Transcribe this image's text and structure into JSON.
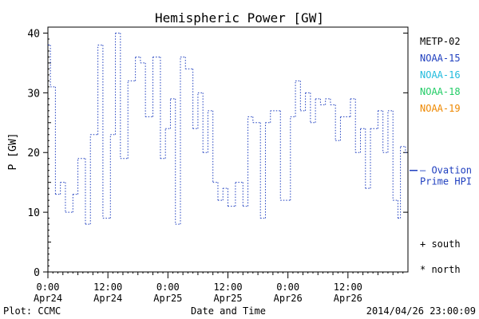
{
  "chart_data": {
    "type": "line",
    "title": "Hemispheric Power [GW]",
    "ylabel": "P [GW]",
    "xlabel": "Date and Time",
    "ylim": [
      0,
      41
    ],
    "xlim": [
      "2014-04-24 00:00",
      "2014-04-27 00:00"
    ],
    "yticks": [
      "0",
      "10",
      "20",
      "30",
      "40"
    ],
    "yticks_values": [
      0,
      10,
      20,
      30,
      40
    ],
    "xticks": [
      {
        "time": "0:00",
        "date": "Apr24"
      },
      {
        "time": "12:00",
        "date": "Apr24"
      },
      {
        "time": "0:00",
        "date": "Apr25"
      },
      {
        "time": "12:00",
        "date": "Apr25"
      },
      {
        "time": "0:00",
        "date": "Apr26"
      },
      {
        "time": "12:00",
        "date": "Apr26"
      }
    ],
    "grid": false,
    "legend": [
      {
        "name": "METP-02",
        "color": "#000000"
      },
      {
        "name": "NOAA-15",
        "color": "#1f3fbf"
      },
      {
        "name": "NOAA-16",
        "color": "#22bbdd"
      },
      {
        "name": "NOAA-18",
        "color": "#22cc66"
      },
      {
        "name": "NOAA-19",
        "color": "#ee8800"
      }
    ],
    "legend_position": "right",
    "ovation_label_line1": "— Ovation",
    "ovation_label_line2": "Prime HPI",
    "ovation_value": 17,
    "series": [
      {
        "name": "NOAA-15",
        "color": "#1f3fbf",
        "line_style": "dotted-step",
        "x": [
          "2014-04-24 00:00",
          "2014-04-24 00:30",
          "2014-04-24 01:30",
          "2014-04-24 02:30",
          "2014-04-24 03:30",
          "2014-04-24 05:00",
          "2014-04-24 06:00",
          "2014-04-24 07:30",
          "2014-04-24 08:30",
          "2014-04-24 10:00",
          "2014-04-24 11:00",
          "2014-04-24 12:30",
          "2014-04-24 13:30",
          "2014-04-24 14:30",
          "2014-04-24 16:00",
          "2014-04-24 17:30",
          "2014-04-24 18:30",
          "2014-04-24 19:30",
          "2014-04-24 21:00",
          "2014-04-24 22:30",
          "2014-04-24 23:30",
          "2014-04-25 00:30",
          "2014-04-25 01:30",
          "2014-04-25 02:30",
          "2014-04-25 03:30",
          "2014-04-25 05:00",
          "2014-04-25 06:00",
          "2014-04-25 07:00",
          "2014-04-25 08:00",
          "2014-04-25 09:00",
          "2014-04-25 10:00",
          "2014-04-25 11:00",
          "2014-04-25 12:00",
          "2014-04-25 13:30",
          "2014-04-25 15:00",
          "2014-04-25 16:00",
          "2014-04-25 17:00",
          "2014-04-25 18:30",
          "2014-04-25 19:30",
          "2014-04-25 20:30",
          "2014-04-25 22:30",
          "2014-04-26 00:30",
          "2014-04-26 01:30",
          "2014-04-26 02:30",
          "2014-04-26 03:30",
          "2014-04-26 04:30",
          "2014-04-26 05:30",
          "2014-04-26 06:30",
          "2014-04-26 07:30",
          "2014-04-26 08:30",
          "2014-04-26 09:30",
          "2014-04-26 10:30",
          "2014-04-26 12:30",
          "2014-04-26 13:30",
          "2014-04-26 14:30",
          "2014-04-26 15:30",
          "2014-04-26 16:30",
          "2014-04-26 18:00",
          "2014-04-26 19:00",
          "2014-04-26 20:00",
          "2014-04-26 21:00",
          "2014-04-26 22:00",
          "2014-04-26 22:30",
          "2014-04-26 23:30"
        ],
        "values": [
          38,
          31,
          13,
          15,
          10,
          13,
          19,
          8,
          23,
          38,
          9,
          23,
          40,
          19,
          32,
          36,
          35,
          26,
          36,
          19,
          24,
          29,
          8,
          36,
          34,
          24,
          30,
          20,
          27,
          15,
          12,
          14,
          11,
          15,
          11,
          26,
          25,
          9,
          25,
          27,
          12,
          26,
          32,
          27,
          30,
          25,
          29,
          28,
          29,
          28,
          22,
          26,
          29,
          20,
          24,
          14,
          24,
          27,
          20,
          27,
          12,
          9,
          21,
          20
        ]
      }
    ],
    "footer_left": "Plot: CCMC",
    "footer_right": "2014/04/26 23:00:09",
    "markers_note_south": "+ south",
    "markers_note_north": "* north"
  }
}
